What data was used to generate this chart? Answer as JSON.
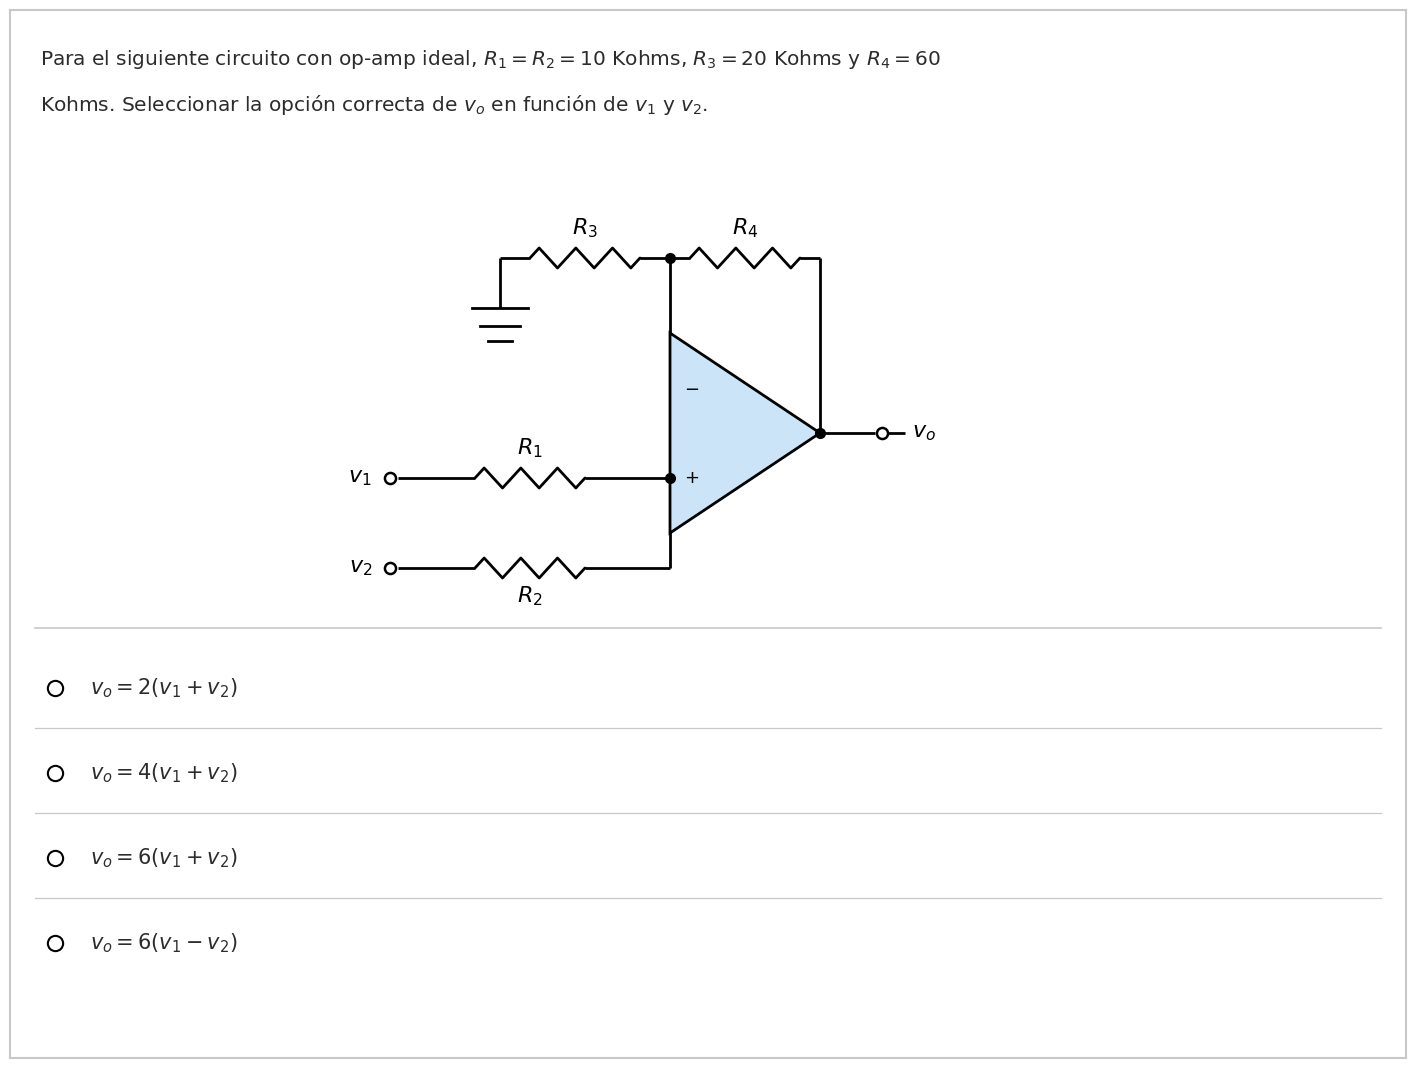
{
  "bg_color": "#ffffff",
  "border_color": "#c8c8c8",
  "text_color": "#2c2c2c",
  "options": [
    "$v_o = 2(v_1 + v_2)$",
    "$v_o = 4(v_1 + v_2)$",
    "$v_o = 6(v_1 + v_2)$",
    "$v_o = 6(v_1 - v_2)$"
  ],
  "op_amp_color": "#cce4f7",
  "op_amp_border": "#000000",
  "wire_color": "#000000",
  "dot_color": "#000000",
  "font_size_title": 14.5,
  "font_size_options": 15,
  "font_size_labels": 13
}
